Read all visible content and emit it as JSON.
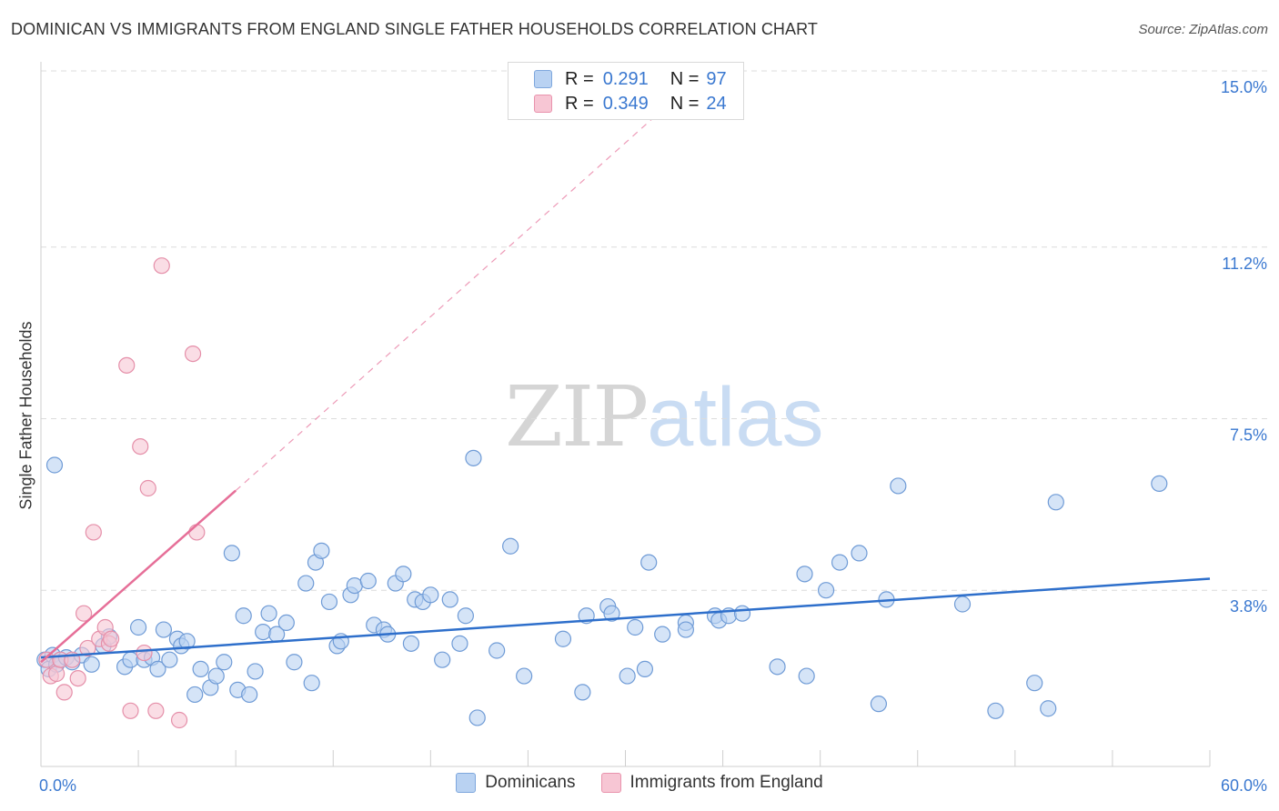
{
  "title": "DOMINICAN VS IMMIGRANTS FROM ENGLAND SINGLE FATHER HOUSEHOLDS CORRELATION CHART",
  "source": "Source: ZipAtlas.com",
  "watermark": {
    "zip": "ZIP",
    "atlas": "atlas"
  },
  "legend": {
    "r_label": "R =",
    "n_label": "N =",
    "rows": [
      {
        "r": "0.291",
        "n": "97",
        "color": "#b9d2f2",
        "border": "#7ea7dd"
      },
      {
        "r": "0.349",
        "n": "24",
        "color": "#f7c6d4",
        "border": "#e993ad"
      }
    ]
  },
  "chart_data": {
    "type": "scatter",
    "ylabel": "Single Father Households",
    "xlim": [
      0,
      60
    ],
    "ylim": [
      0,
      15
    ],
    "x_tick_labels": [
      "0.0%",
      "60.0%"
    ],
    "y_ticks": [
      {
        "value": 3.8,
        "label": "3.8%"
      },
      {
        "value": 7.5,
        "label": "7.5%"
      },
      {
        "value": 11.2,
        "label": "11.2%"
      },
      {
        "value": 15.0,
        "label": "15.0%"
      }
    ],
    "grid": true,
    "series": [
      {
        "name": "Dominicans",
        "fill": "#b9d2f2",
        "stroke": "#6f9bd6",
        "line_color": "#2e6fcb",
        "trend": {
          "x": [
            0,
            60
          ],
          "y": [
            2.35,
            4.05
          ]
        },
        "points": [
          [
            0.2,
            2.3
          ],
          [
            0.4,
            2.1
          ],
          [
            0.6,
            2.4
          ],
          [
            0.8,
            2.2
          ],
          [
            1.0,
            2.3
          ],
          [
            1.3,
            2.35
          ],
          [
            1.6,
            2.25
          ],
          [
            2.1,
            2.4
          ],
          [
            2.6,
            2.2
          ],
          [
            3.2,
            2.6
          ],
          [
            3.5,
            2.8
          ],
          [
            4.3,
            2.15
          ],
          [
            4.6,
            2.3
          ],
          [
            5.0,
            3.0
          ],
          [
            5.3,
            2.3
          ],
          [
            5.7,
            2.35
          ],
          [
            6.0,
            2.1
          ],
          [
            6.3,
            2.95
          ],
          [
            6.6,
            2.3
          ],
          [
            7.0,
            2.75
          ],
          [
            7.2,
            2.6
          ],
          [
            7.5,
            2.7
          ],
          [
            7.9,
            1.55
          ],
          [
            8.2,
            2.1
          ],
          [
            8.7,
            1.7
          ],
          [
            9.0,
            1.95
          ],
          [
            9.4,
            2.25
          ],
          [
            9.8,
            4.6
          ],
          [
            10.1,
            1.65
          ],
          [
            10.4,
            3.25
          ],
          [
            10.7,
            1.55
          ],
          [
            11.0,
            2.05
          ],
          [
            11.4,
            2.9
          ],
          [
            11.7,
            3.3
          ],
          [
            12.1,
            2.85
          ],
          [
            12.6,
            3.1
          ],
          [
            13.0,
            2.25
          ],
          [
            13.6,
            3.95
          ],
          [
            13.9,
            1.8
          ],
          [
            14.1,
            4.4
          ],
          [
            14.4,
            4.65
          ],
          [
            14.8,
            3.55
          ],
          [
            15.2,
            2.6
          ],
          [
            15.4,
            2.7
          ],
          [
            15.9,
            3.7
          ],
          [
            16.1,
            3.9
          ],
          [
            16.8,
            4.0
          ],
          [
            17.1,
            3.05
          ],
          [
            17.6,
            2.95
          ],
          [
            17.8,
            2.85
          ],
          [
            18.2,
            3.95
          ],
          [
            18.6,
            4.15
          ],
          [
            19.0,
            2.65
          ],
          [
            19.2,
            3.6
          ],
          [
            19.6,
            3.55
          ],
          [
            20.0,
            3.7
          ],
          [
            20.6,
            2.3
          ],
          [
            21.0,
            3.6
          ],
          [
            21.5,
            2.65
          ],
          [
            21.8,
            3.25
          ],
          [
            22.4,
            1.05
          ],
          [
            22.2,
            6.65
          ],
          [
            23.4,
            2.5
          ],
          [
            24.1,
            4.75
          ],
          [
            24.8,
            1.95
          ],
          [
            26.8,
            2.75
          ],
          [
            27.8,
            1.6
          ],
          [
            28.0,
            3.25
          ],
          [
            29.1,
            3.45
          ],
          [
            29.3,
            3.3
          ],
          [
            30.1,
            1.95
          ],
          [
            30.5,
            3.0
          ],
          [
            31.0,
            2.1
          ],
          [
            31.2,
            4.4
          ],
          [
            31.9,
            2.85
          ],
          [
            33.1,
            3.1
          ],
          [
            33.1,
            2.95
          ],
          [
            34.6,
            3.25
          ],
          [
            34.8,
            3.15
          ],
          [
            35.3,
            3.25
          ],
          [
            36.0,
            3.3
          ],
          [
            37.8,
            2.15
          ],
          [
            39.2,
            4.15
          ],
          [
            39.3,
            1.95
          ],
          [
            40.3,
            3.8
          ],
          [
            41.0,
            4.4
          ],
          [
            42.0,
            4.6
          ],
          [
            43.0,
            1.35
          ],
          [
            43.4,
            3.6
          ],
          [
            44.0,
            6.05
          ],
          [
            47.3,
            3.5
          ],
          [
            49.0,
            1.2
          ],
          [
            51.0,
            1.8
          ],
          [
            51.7,
            1.25
          ],
          [
            52.1,
            5.7
          ],
          [
            57.4,
            6.1
          ],
          [
            0.7,
            6.5
          ]
        ]
      },
      {
        "name": "Immigrants from England",
        "fill": "#f7c6d4",
        "stroke": "#e58fa9",
        "line_color": "#e66f98",
        "trend": {
          "x": [
            0,
            10
          ],
          "y": [
            2.25,
            5.95
          ]
        },
        "trend_dashed": {
          "x": [
            10,
            32
          ],
          "y": [
            5.95,
            14.2
          ]
        },
        "points": [
          [
            0.3,
            2.3
          ],
          [
            0.5,
            1.95
          ],
          [
            0.8,
            2.0
          ],
          [
            1.0,
            2.3
          ],
          [
            1.2,
            1.6
          ],
          [
            1.6,
            2.3
          ],
          [
            1.9,
            1.9
          ],
          [
            2.2,
            3.3
          ],
          [
            2.4,
            2.55
          ],
          [
            2.7,
            5.05
          ],
          [
            3.0,
            2.75
          ],
          [
            3.3,
            3.0
          ],
          [
            3.5,
            2.65
          ],
          [
            3.6,
            2.75
          ],
          [
            4.4,
            8.65
          ],
          [
            4.6,
            1.2
          ],
          [
            5.1,
            6.9
          ],
          [
            5.5,
            6.0
          ],
          [
            5.3,
            2.45
          ],
          [
            5.9,
            1.2
          ],
          [
            6.2,
            10.8
          ],
          [
            7.1,
            1.0
          ],
          [
            7.8,
            8.9
          ],
          [
            8.0,
            5.05
          ]
        ]
      }
    ]
  }
}
